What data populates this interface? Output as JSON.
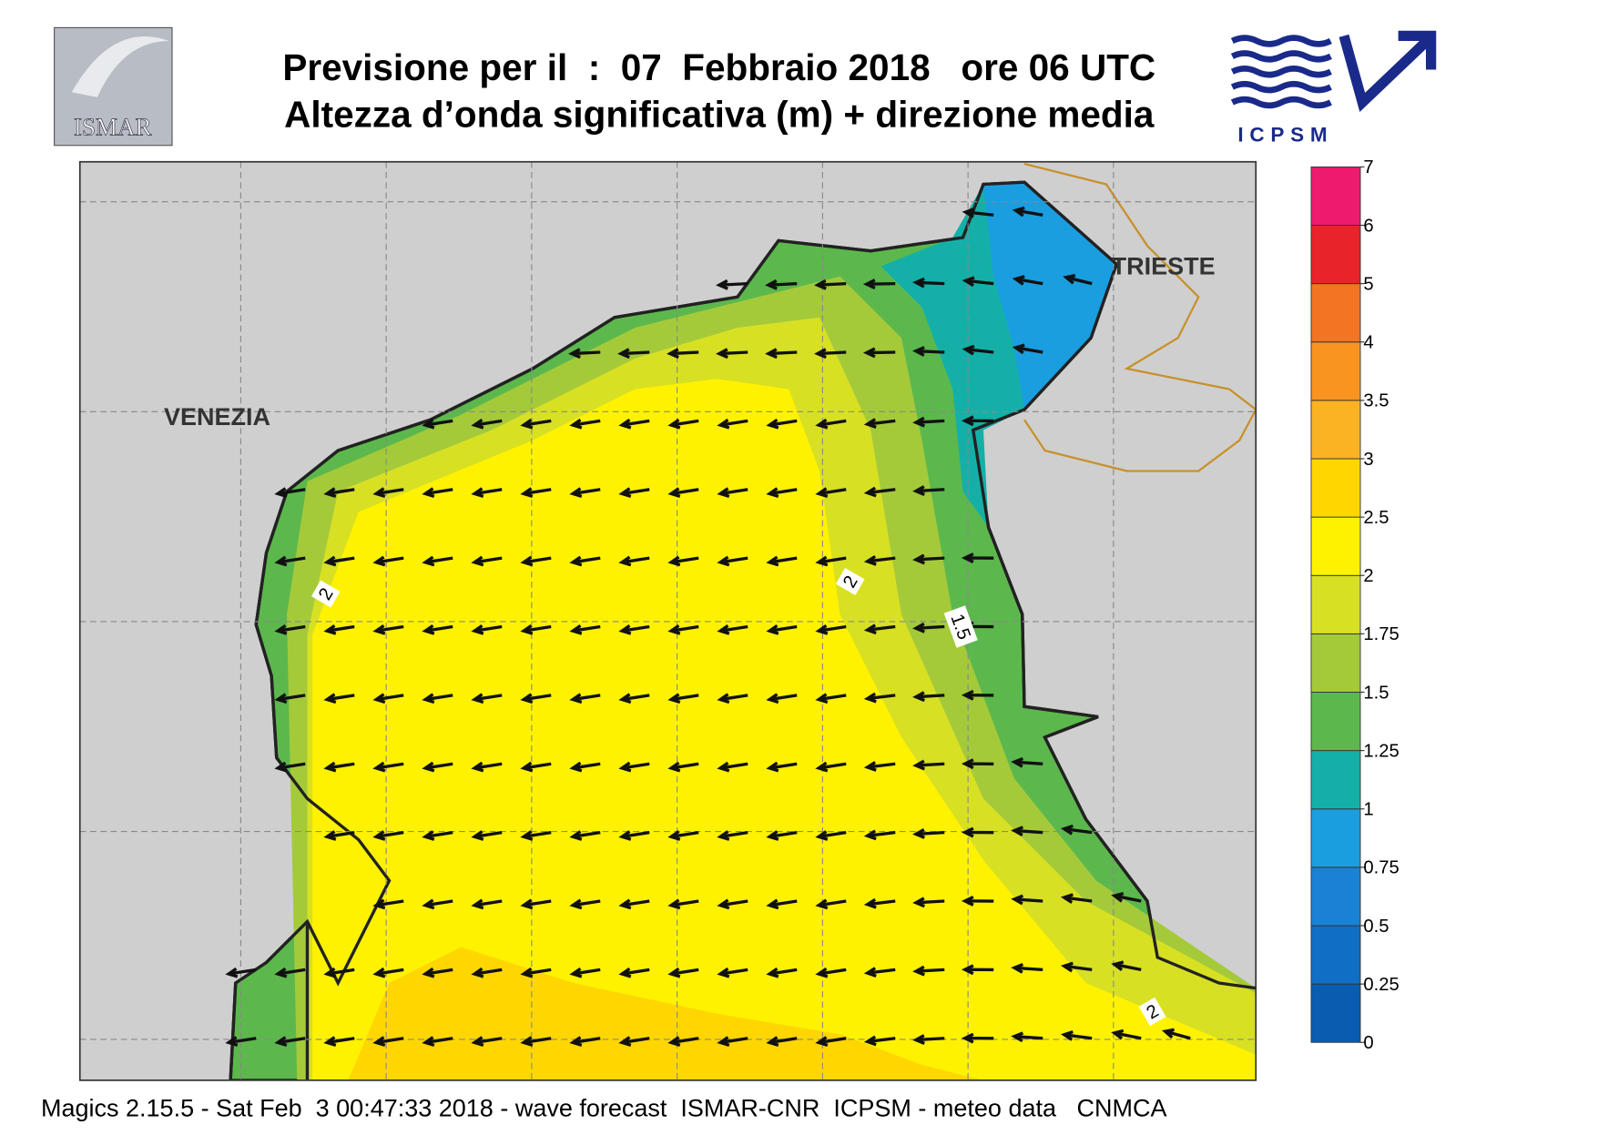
{
  "header": {
    "line1": "Previsione per il  :  07  Febbraio 2018   ore 06 UTC",
    "line2": "Altezza d’onda significativa (m) + direzione media"
  },
  "logos": {
    "left": "ISMAR",
    "right": "ICPSM"
  },
  "map": {
    "cities": [
      "VENEZIA",
      "TRIESTE"
    ],
    "contour_labels": [
      "2",
      "2",
      "1.5",
      "2"
    ]
  },
  "legend": {
    "ticks": [
      0,
      0.25,
      0.5,
      0.75,
      1,
      1.25,
      1.5,
      1.75,
      2,
      2.5,
      3,
      3.5,
      4,
      5,
      6,
      7
    ],
    "colors": [
      "#0a5cb0",
      "#106ec4",
      "#1a82d4",
      "#1a9ee0",
      "#14b0a8",
      "#5cb84c",
      "#a4ca3a",
      "#d8e024",
      "#fff200",
      "#ffd600",
      "#fbb323",
      "#f8941f",
      "#f37422",
      "#e8232a",
      "#ee1a6e"
    ]
  },
  "footer": "Magics 2.15.5 - Sat Feb  3 00:47:33 2018 - wave forecast  ISMAR-CNR  ICPSM - meteo data   CNMCA"
}
